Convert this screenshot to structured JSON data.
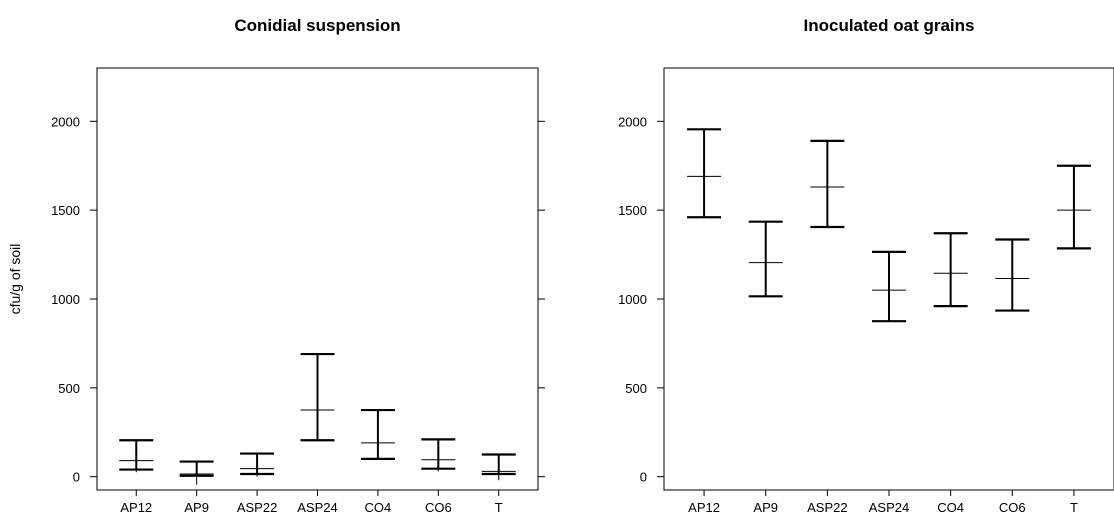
{
  "chart_data": [
    {
      "type": "errorbar",
      "title": "Conidial suspension",
      "xlabel": "",
      "ylabel": "cfu/g of soil",
      "categories": [
        "AP12",
        "AP9",
        "ASP22",
        "ASP24",
        "CO4",
        "CO6",
        "T"
      ],
      "yticks": [
        0,
        500,
        1000,
        1500,
        2000
      ],
      "ylim": [
        -75,
        2300
      ],
      "mean": [
        90,
        15,
        45,
        375,
        190,
        95,
        30
      ],
      "lower": [
        40,
        5,
        15,
        205,
        100,
        45,
        15
      ],
      "upper": [
        205,
        85,
        130,
        690,
        375,
        210,
        125
      ],
      "mean_bar_low": [
        25,
        -45,
        0,
        375,
        190,
        30,
        -20
      ],
      "mean_bar_high": [
        90,
        45,
        45,
        375,
        190,
        95,
        70
      ]
    },
    {
      "type": "errorbar",
      "title": "Inoculated oat grains",
      "xlabel": "",
      "ylabel": "",
      "categories": [
        "AP12",
        "AP9",
        "ASP22",
        "ASP24",
        "CO4",
        "CO6",
        "T"
      ],
      "yticks": [
        0,
        500,
        1000,
        1500,
        2000
      ],
      "ylim": [
        -75,
        2300
      ],
      "mean": [
        1690,
        1205,
        1630,
        1050,
        1145,
        1115,
        1500
      ],
      "lower": [
        1460,
        1015,
        1405,
        875,
        960,
        935,
        1285
      ],
      "upper": [
        1955,
        1435,
        1890,
        1265,
        1370,
        1335,
        1750
      ]
    }
  ]
}
